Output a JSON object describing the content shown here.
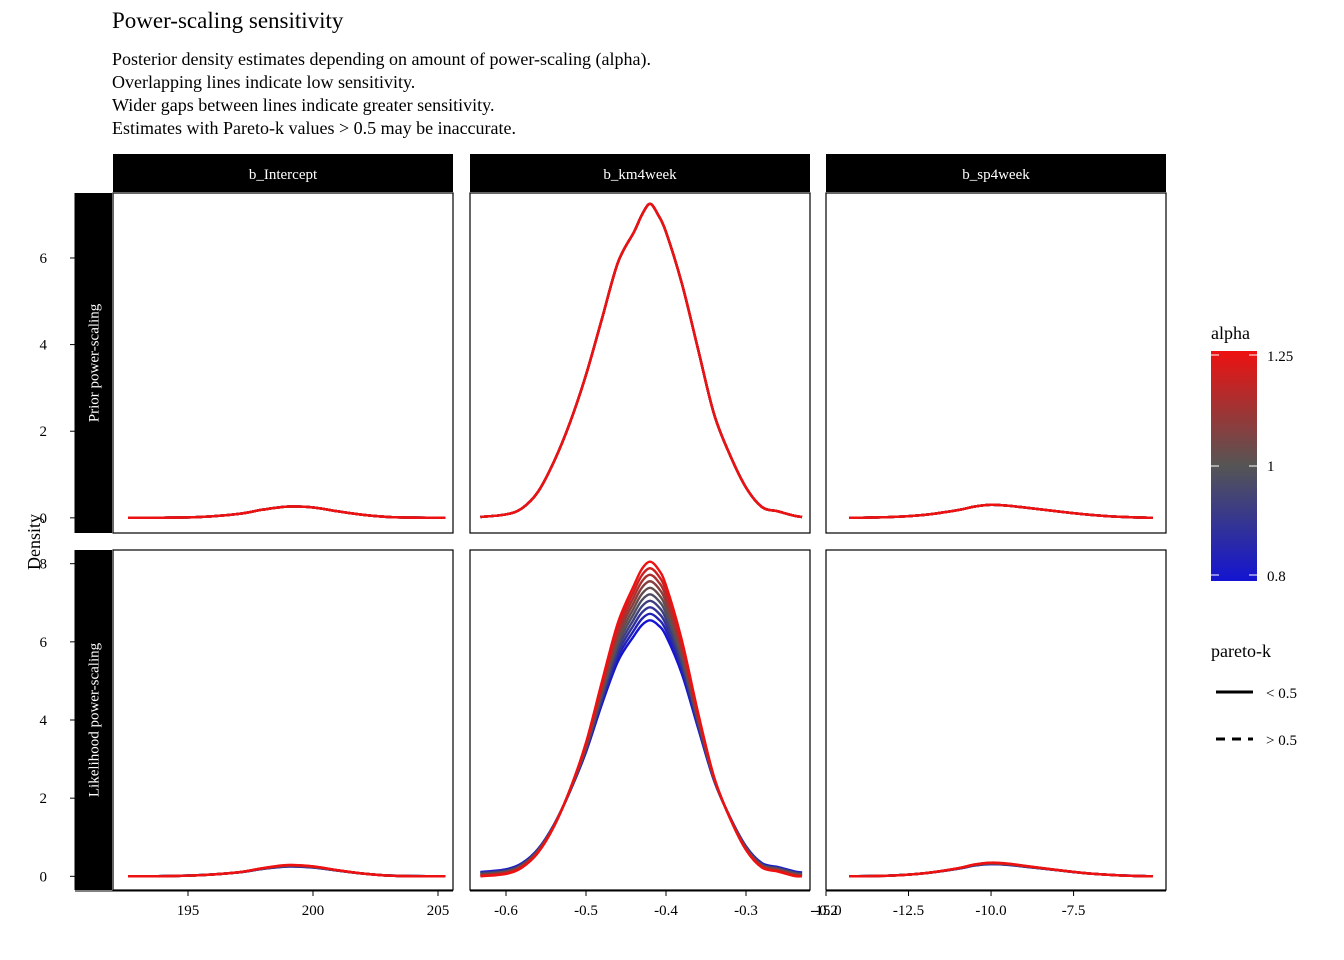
{
  "title": "Power-scaling sensitivity",
  "subtitle_lines": [
    "Posterior density estimates depending on amount of power-scaling (alpha).",
    "Overlapping lines indicate low sensitivity.",
    "Wider gaps between lines indicate greater sensitivity.",
    "Estimates with Pareto-k values > 0.5 may be inaccurate."
  ],
  "chart_data": {
    "type": "line",
    "ylabel": "Density",
    "columns": [
      {
        "label": "b_Intercept",
        "xlim": [
          192,
          205.6
        ],
        "ticks": [
          195,
          200,
          205
        ],
        "tick_labels": [
          "195",
          "200",
          "205"
        ]
      },
      {
        "label": "b_km4week",
        "xlim": [
          -0.645,
          -0.22
        ],
        "ticks": [
          -0.6,
          -0.5,
          -0.4,
          -0.3,
          -0.2
        ],
        "tick_labels": [
          "-0.6",
          "-0.5",
          "-0.4",
          "-0.3",
          "-0.2"
        ]
      },
      {
        "label": "b_sp4week",
        "xlim": [
          -15.0,
          -4.7
        ],
        "ticks": [
          -15.0,
          -12.5,
          -10.0,
          -7.5
        ],
        "tick_labels": [
          "-15.0",
          "-12.5",
          "-10.0",
          "-7.5"
        ]
      }
    ],
    "rows": [
      {
        "label": "Prior power-scaling",
        "ylim": [
          -0.35,
          7.5
        ],
        "ticks": [
          0,
          2,
          4,
          6
        ],
        "tick_labels": [
          "0",
          "2",
          "4",
          "6"
        ]
      },
      {
        "label": "Likelihood power-scaling",
        "ylim": [
          -0.35,
          8.35
        ],
        "ticks": [
          0,
          2,
          4,
          6,
          8
        ],
        "tick_labels": [
          "0",
          "2",
          "4",
          "6",
          "8"
        ]
      }
    ],
    "alpha_levels": [
      0.8,
      0.85,
      0.9,
      0.95,
      1.0,
      1.05,
      1.1,
      1.15,
      1.2,
      1.25
    ],
    "panels": [
      {
        "row": 0,
        "col": 0,
        "x": [
          192.6,
          194,
          195.5,
          197,
          198,
          199,
          200,
          201,
          202,
          203,
          204,
          205.3
        ],
        "base": [
          0,
          0.003,
          0.02,
          0.09,
          0.19,
          0.26,
          0.24,
          0.15,
          0.07,
          0.02,
          0.005,
          0
        ],
        "spread": 0
      },
      {
        "row": 0,
        "col": 1,
        "x": [
          -0.632,
          -0.6,
          -0.58,
          -0.56,
          -0.54,
          -0.52,
          -0.5,
          -0.48,
          -0.46,
          -0.44,
          -0.43,
          -0.42,
          -0.41,
          -0.4,
          -0.38,
          -0.36,
          -0.34,
          -0.32,
          -0.3,
          -0.28,
          -0.26,
          -0.24,
          -0.23
        ],
        "base": [
          0.02,
          0.08,
          0.22,
          0.6,
          1.3,
          2.2,
          3.3,
          4.6,
          5.9,
          6.6,
          7.0,
          7.25,
          7.0,
          6.6,
          5.4,
          3.9,
          2.4,
          1.45,
          0.7,
          0.25,
          0.15,
          0.05,
          0.02
        ],
        "spread": 0
      },
      {
        "row": 0,
        "col": 2,
        "x": [
          -14.3,
          -13,
          -12,
          -11,
          -10.5,
          -10,
          -9.5,
          -9,
          -8,
          -7,
          -6,
          -5.1
        ],
        "base": [
          0,
          0.02,
          0.07,
          0.18,
          0.26,
          0.3,
          0.28,
          0.24,
          0.15,
          0.07,
          0.02,
          0
        ],
        "spread": 0
      },
      {
        "row": 1,
        "col": 0,
        "x": [
          192.6,
          194,
          195.5,
          197,
          198,
          199,
          200,
          201,
          202,
          203,
          204,
          205.3
        ],
        "base": [
          0,
          0.005,
          0.03,
          0.1,
          0.2,
          0.27,
          0.24,
          0.15,
          0.07,
          0.02,
          0.005,
          0
        ],
        "spread": 0.02
      },
      {
        "row": 1,
        "col": 1,
        "x": [
          -0.632,
          -0.6,
          -0.58,
          -0.56,
          -0.54,
          -0.52,
          -0.5,
          -0.48,
          -0.46,
          -0.44,
          -0.43,
          -0.42,
          -0.41,
          -0.4,
          -0.38,
          -0.36,
          -0.34,
          -0.32,
          -0.3,
          -0.28,
          -0.26,
          -0.24,
          -0.23
        ],
        "base": [
          0.05,
          0.12,
          0.28,
          0.65,
          1.3,
          2.2,
          3.3,
          4.7,
          6.0,
          6.8,
          7.15,
          7.3,
          7.15,
          6.8,
          5.6,
          4.0,
          2.5,
          1.5,
          0.72,
          0.28,
          0.18,
          0.07,
          0.04
        ],
        "spread": 0.75
      },
      {
        "row": 1,
        "col": 2,
        "x": [
          -14.3,
          -13,
          -12,
          -11,
          -10.5,
          -10,
          -9.5,
          -9,
          -8,
          -7,
          -6,
          -5.1
        ],
        "base": [
          0,
          0.02,
          0.08,
          0.2,
          0.29,
          0.33,
          0.31,
          0.26,
          0.16,
          0.07,
          0.02,
          0
        ],
        "spread": 0.02
      }
    ],
    "legend": {
      "alpha": {
        "title": "alpha",
        "labels": [
          "1.25",
          "1",
          "0.8"
        ],
        "colors": {
          "low": "#1414d2",
          "mid": "#555555",
          "high": "#ee1111"
        }
      },
      "pareto_k": {
        "title": "pareto-k",
        "items": [
          "< 0.5",
          "> 0.5"
        ]
      }
    },
    "grid": false
  }
}
